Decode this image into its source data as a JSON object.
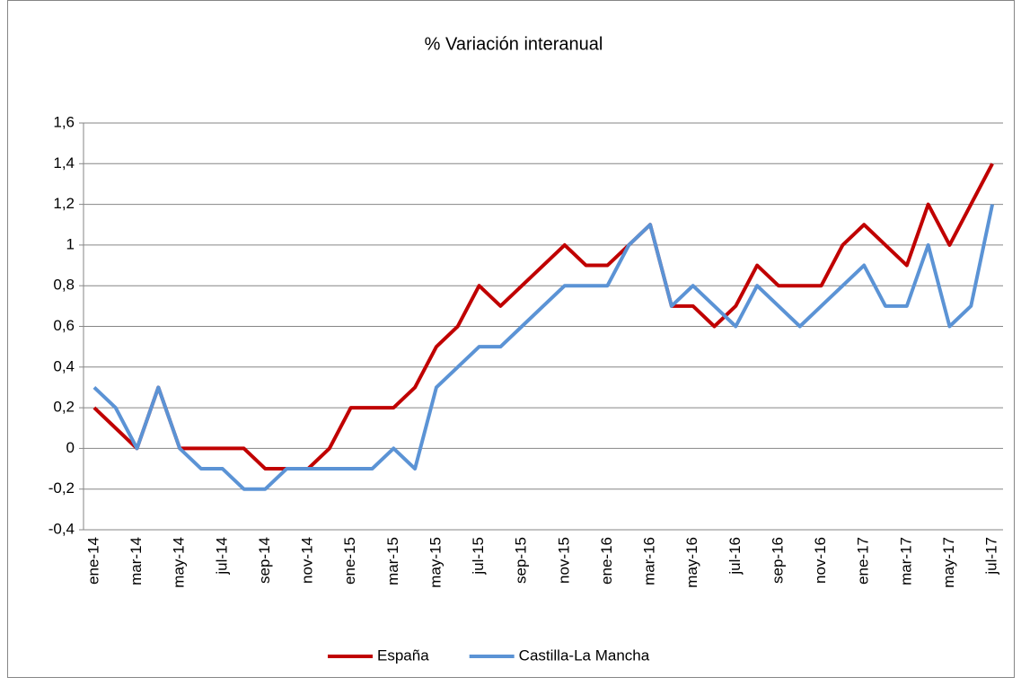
{
  "chart_data": {
    "type": "line",
    "title": "% Variación interanual",
    "categories": [
      "ene-14",
      null,
      "mar-14",
      null,
      "may-14",
      null,
      "jul-14",
      null,
      "sep-14",
      null,
      "nov-14",
      null,
      "ene-15",
      null,
      "mar-15",
      null,
      "may-15",
      null,
      "jul-15",
      null,
      "sep-15",
      null,
      "nov-15",
      null,
      "ene-16",
      null,
      "mar-16",
      null,
      "may-16",
      null,
      "jul-16",
      null,
      "sep-16",
      null,
      "nov-16",
      null,
      "ene-17",
      null,
      "mar-17",
      null,
      "may-17",
      null,
      "jul-17"
    ],
    "series": [
      {
        "name": "España",
        "color": "#c00000",
        "values": [
          0.2,
          0.1,
          0.0,
          0.3,
          0.0,
          0.0,
          0.0,
          0.0,
          -0.1,
          -0.1,
          -0.1,
          0.0,
          0.2,
          0.2,
          0.2,
          0.3,
          0.5,
          0.6,
          0.8,
          0.7,
          0.8,
          0.9,
          1.0,
          0.9,
          0.9,
          1.0,
          1.1,
          0.7,
          0.7,
          0.6,
          0.7,
          0.9,
          0.8,
          0.8,
          0.8,
          1.0,
          1.1,
          1.0,
          0.9,
          1.2,
          1.0,
          1.2,
          1.4
        ]
      },
      {
        "name": "Castilla-La Mancha",
        "color": "#5b93d5",
        "values": [
          0.3,
          0.2,
          0.0,
          0.3,
          0.0,
          -0.1,
          -0.1,
          -0.2,
          -0.2,
          -0.1,
          -0.1,
          -0.1,
          -0.1,
          -0.1,
          0.0,
          -0.1,
          0.3,
          0.4,
          0.5,
          0.5,
          0.6,
          0.7,
          0.8,
          0.8,
          0.8,
          1.0,
          1.1,
          0.7,
          0.8,
          0.7,
          0.6,
          0.8,
          0.7,
          0.6,
          0.7,
          0.8,
          0.9,
          0.7,
          0.7,
          1.0,
          0.6,
          0.7,
          1.2
        ]
      }
    ],
    "ylim": [
      -0.4,
      1.6
    ],
    "yticks": [
      {
        "value": -0.4,
        "label": "-0,4"
      },
      {
        "value": -0.2,
        "label": "-0,2"
      },
      0,
      {
        "value": 0.2,
        "label": "0,2"
      },
      {
        "value": 0.4,
        "label": "0,4"
      },
      {
        "value": 0.6,
        "label": "0,6"
      },
      {
        "value": 0.8,
        "label": "0,8"
      },
      1,
      {
        "value": 1.2,
        "label": "1,2"
      },
      {
        "value": 1.4,
        "label": "1,4"
      },
      {
        "value": 1.6,
        "label": "1,6"
      }
    ],
    "grid": true,
    "legend": "bottom"
  }
}
